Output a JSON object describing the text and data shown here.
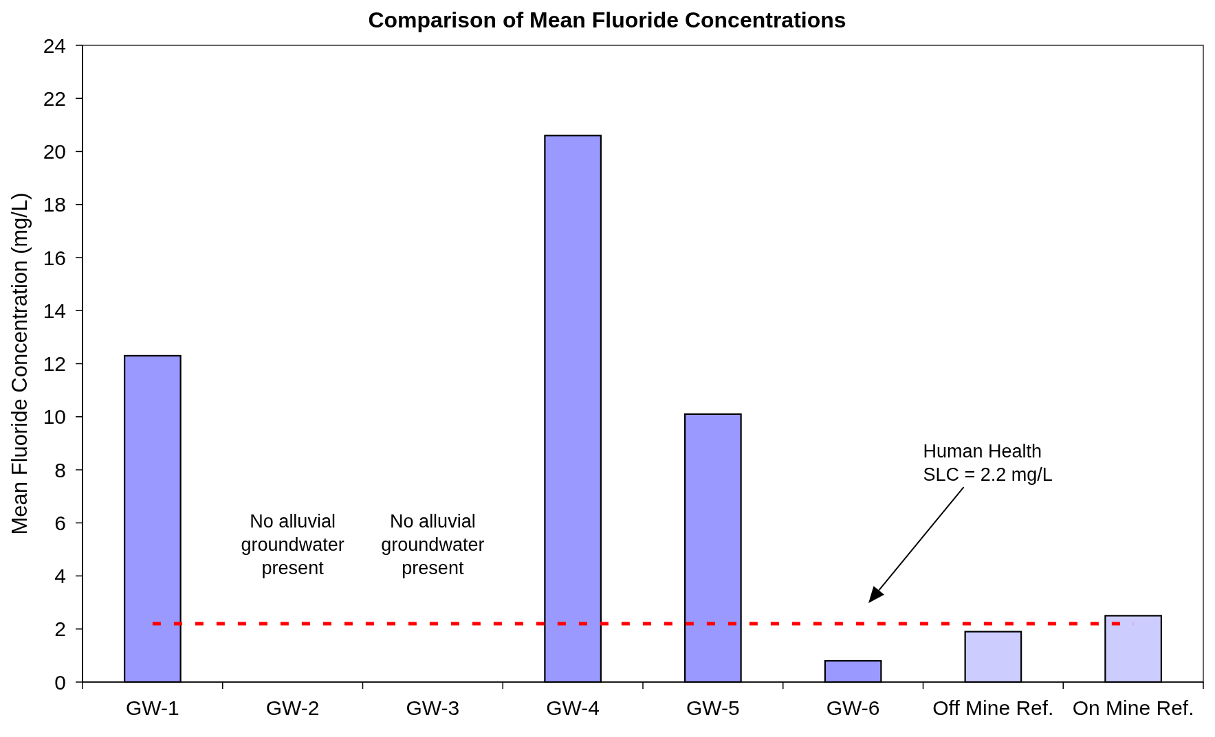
{
  "chart_data": {
    "type": "bar",
    "title": "Comparison of Mean Fluoride Concentrations",
    "ylabel": "Mean Fluoride Concentration (mg/L)",
    "categories": [
      "GW-1",
      "GW-2",
      "GW-3",
      "GW-4",
      "GW-5",
      "GW-6",
      "Off Mine Ref.",
      "On Mine Ref."
    ],
    "values": [
      12.3,
      null,
      null,
      20.6,
      10.1,
      0.8,
      1.9,
      2.5
    ],
    "colors": [
      "#9999ff",
      null,
      null,
      "#9999ff",
      "#9999ff",
      "#9999ff",
      "#ccccff",
      "#ccccff"
    ],
    "ylim": [
      0,
      24
    ],
    "yticks": [
      0,
      2,
      4,
      6,
      8,
      10,
      12,
      14,
      16,
      18,
      20,
      22,
      24
    ],
    "ref_lines": [
      {
        "axis": "y",
        "value": 2.2,
        "color": "#ff0000",
        "line_style": "dashed"
      }
    ],
    "annotations": [
      "No alluvial\ngroundwater\npresent",
      "No alluvial\ngroundwater\npresent",
      "Human Health\nSLC = 2.2 mg/L"
    ]
  }
}
